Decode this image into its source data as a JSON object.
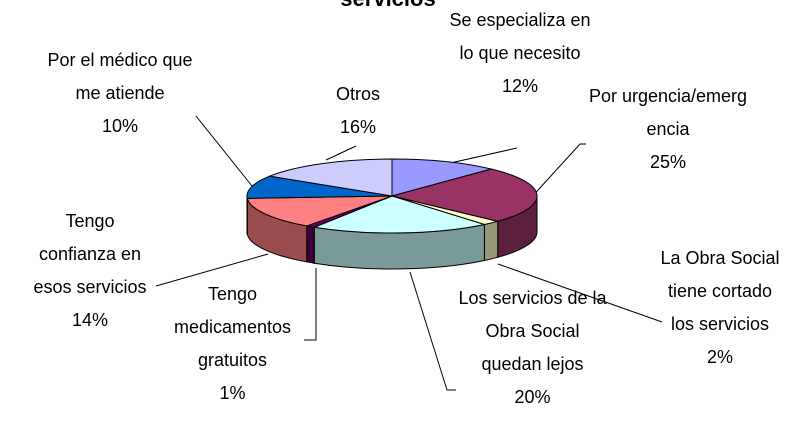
{
  "chart_data": {
    "type": "pie3d",
    "title": "servicios",
    "categories": [
      "Se especializa en lo que necesito",
      "Por urgencia/emergencia",
      "La Obra Social tiene cortado los servicios",
      "Los servicios de la Obra Social quedan lejos",
      "Tengo medicamentos gratuitos",
      "Tengo confianza en esos servicios",
      "Por el médico que me atiende",
      "Otros"
    ],
    "values": [
      12,
      25,
      2,
      20,
      1,
      14,
      10,
      16
    ],
    "value_labels": [
      "12%",
      "25%",
      "2%",
      "20%",
      "1%",
      "14%",
      "10%",
      "16%"
    ],
    "colors": [
      "#9999ff",
      "#993366",
      "#ffffcc",
      "#ccffff",
      "#660066",
      "#ff8080",
      "#0066cc",
      "#ccccff"
    ]
  }
}
